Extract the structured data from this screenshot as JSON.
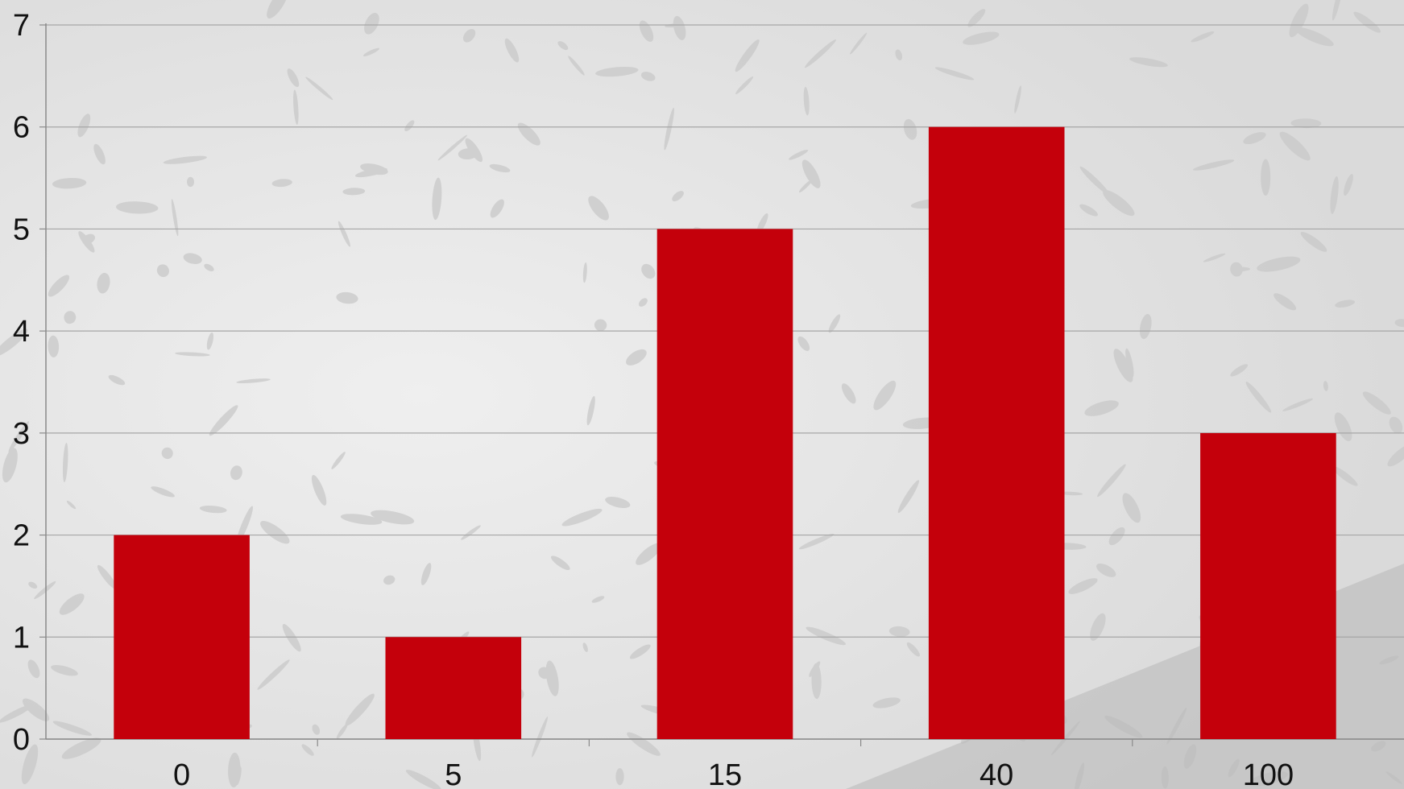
{
  "chart_data": {
    "type": "bar",
    "title": "",
    "xlabel": "",
    "ylabel": "",
    "categories": [
      "0",
      "5",
      "15",
      "40",
      "100"
    ],
    "values": [
      2,
      1,
      5,
      6,
      3
    ],
    "ylim": [
      0,
      7
    ],
    "yticks": [
      "0",
      "1",
      "2",
      "3",
      "4",
      "5",
      "6",
      "7"
    ],
    "grid": true,
    "bar_color": "#c4000b",
    "gridline_color": "#a6a6a6",
    "background": "light grey foliage photograph"
  }
}
